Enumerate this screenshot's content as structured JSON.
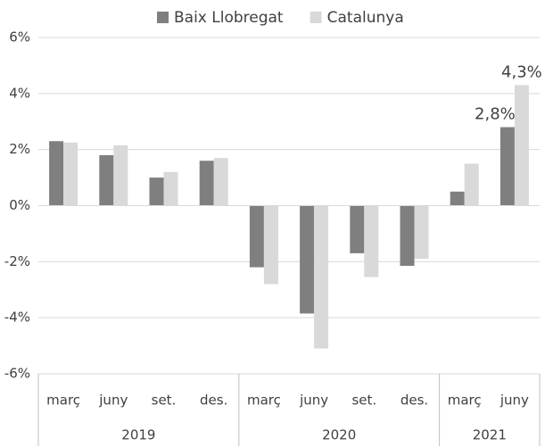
{
  "chart_data": {
    "type": "bar",
    "groups": [
      {
        "name": "2019",
        "categories": [
          "març",
          "juny",
          "set.",
          "des."
        ]
      },
      {
        "name": "2020",
        "categories": [
          "març",
          "juny",
          "set.",
          "des."
        ]
      },
      {
        "name": "2021",
        "categories": [
          "març",
          "juny"
        ]
      }
    ],
    "series": [
      {
        "name": "Baix Llobregat",
        "color": "#7f7f7f",
        "values": [
          2.3,
          1.8,
          1.0,
          1.6,
          -2.2,
          -3.85,
          -1.7,
          -2.15,
          0.5,
          2.8
        ],
        "value_labels": [
          null,
          null,
          null,
          null,
          null,
          null,
          null,
          null,
          null,
          "2,8%"
        ]
      },
      {
        "name": "Catalunya",
        "color": "#d9d9d9",
        "values": [
          2.25,
          2.15,
          1.2,
          1.7,
          -2.8,
          -5.1,
          -2.55,
          -1.9,
          1.5,
          4.3
        ],
        "value_labels": [
          null,
          null,
          null,
          null,
          null,
          null,
          null,
          null,
          null,
          "4,3%"
        ]
      }
    ],
    "ylim": [
      -6,
      6
    ],
    "yticks": [
      {
        "value": -6,
        "label": "-6%"
      },
      {
        "value": -4,
        "label": "-4%"
      },
      {
        "value": -2,
        "label": "-2%"
      },
      {
        "value": 0,
        "label": "0%"
      },
      {
        "value": 2,
        "label": "2%"
      },
      {
        "value": 4,
        "label": "4%"
      },
      {
        "value": 6,
        "label": "6%"
      }
    ],
    "grid": true,
    "legend": "top"
  }
}
